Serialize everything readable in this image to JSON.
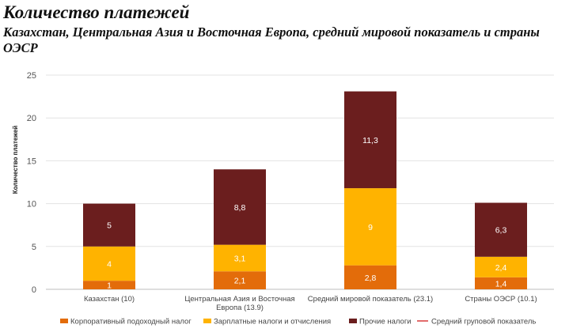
{
  "header": {
    "title": "Количество платежей",
    "subtitle": "Казахстан, Центральная Азия и Восточная Европа, средний мировой показатель и страны ОЭСР"
  },
  "chart_data": {
    "type": "bar",
    "stacked": true,
    "ylabel": "Количество платежей",
    "ylim": [
      0,
      25
    ],
    "yticks": [
      0,
      5,
      10,
      15,
      20,
      25
    ],
    "grid": true,
    "legend_position": "bottom",
    "categories": [
      [
        "Казахстан (10)"
      ],
      [
        "Центральная Азия и Восточная",
        "Европа (13.9)"
      ],
      [
        "Средний мировой показатель (23.1)"
      ],
      [
        "Страны ОЭСР (10.1)"
      ]
    ],
    "series": [
      {
        "name": "Корпоративный подоходный налог",
        "color": "#E36C0A",
        "values": [
          1,
          2.1,
          2.8,
          1.4
        ],
        "labels": [
          "1",
          "2,1",
          "2,8",
          "1,4"
        ]
      },
      {
        "name": "Зарплатные налоги и отчисления",
        "color": "#FFB300",
        "values": [
          4,
          3.1,
          9,
          2.4
        ],
        "labels": [
          "4",
          "3,1",
          "9",
          "2,4"
        ]
      },
      {
        "name": "Прочие налоги",
        "color": "#6B1E1E",
        "values": [
          5,
          8.8,
          11.3,
          6.3
        ],
        "labels": [
          "5",
          "8,8",
          "11,3",
          "6,3"
        ]
      }
    ],
    "reference_line": {
      "name": "Средний груповой показатель",
      "color": "#D93A3A"
    }
  }
}
